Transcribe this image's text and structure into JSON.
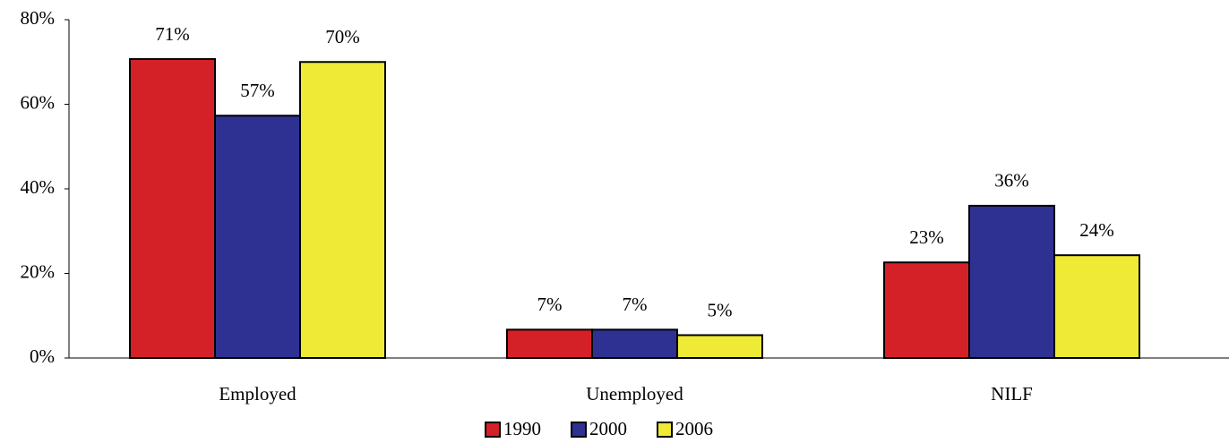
{
  "chart_data": {
    "type": "bar",
    "categories": [
      "Employed",
      "Unemployed",
      "NILF"
    ],
    "series": [
      {
        "name": "1990",
        "color": "#d42027",
        "values": [
          70.7,
          6.7,
          22.6
        ],
        "value_labels": [
          "71%",
          "7%",
          "23%"
        ]
      },
      {
        "name": "2000",
        "color": "#2e3192",
        "values": [
          57.3,
          6.7,
          36.0
        ],
        "value_labels": [
          "57%",
          "7%",
          "36%"
        ]
      },
      {
        "name": "2006",
        "color": "#eeea35",
        "values": [
          70.0,
          5.4,
          24.3
        ],
        "value_labels": [
          "70%",
          "5%",
          "24%"
        ]
      }
    ],
    "ylim": [
      0,
      80
    ],
    "yticks": [
      {
        "value": 0,
        "label": "0%"
      },
      {
        "value": 20,
        "label": "20%"
      },
      {
        "value": 40,
        "label": "40%"
      },
      {
        "value": 60,
        "label": "60%"
      },
      {
        "value": 80,
        "label": "80%"
      }
    ],
    "grid": false,
    "legend": "bottom"
  }
}
